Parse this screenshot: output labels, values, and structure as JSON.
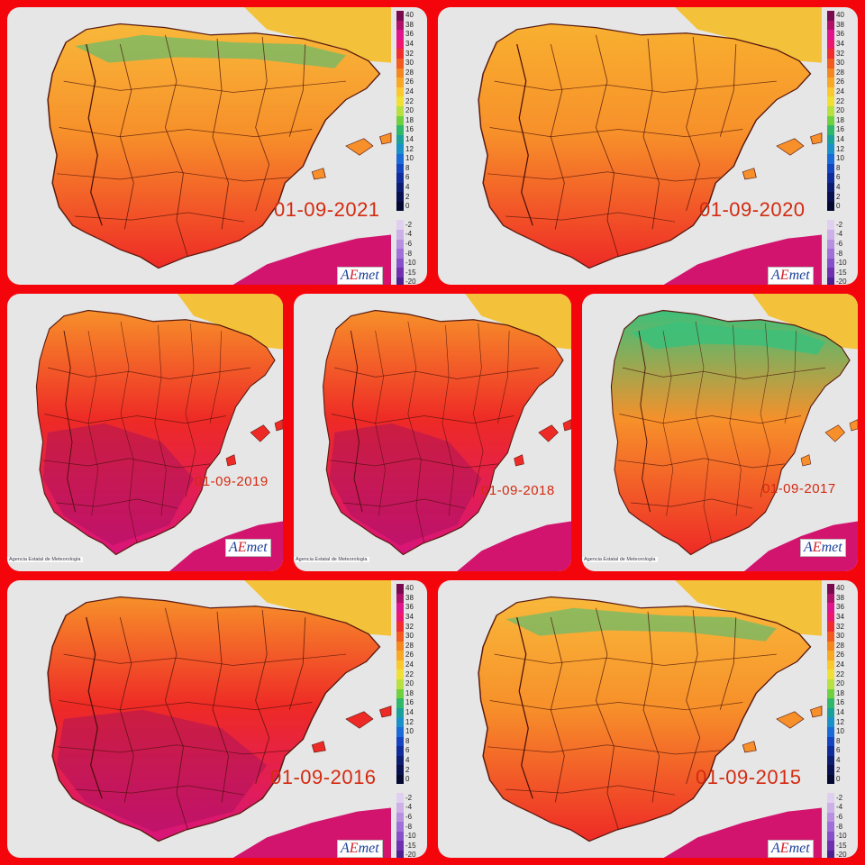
{
  "panels": [
    {
      "id": "p2021",
      "date": "01-09-2021",
      "heat": "mild"
    },
    {
      "id": "p2020",
      "date": "01-09-2020",
      "heat": "hot"
    },
    {
      "id": "p2019",
      "date": "01-09-2019",
      "heat": "extreme"
    },
    {
      "id": "p2018",
      "date": "01-09-2018",
      "heat": "extreme"
    },
    {
      "id": "p2017",
      "date": "01-09-2017",
      "heat": "cool"
    },
    {
      "id": "p2016",
      "date": "01-09-2016",
      "heat": "extreme"
    },
    {
      "id": "p2015",
      "date": "01-09-2015",
      "heat": "mild"
    }
  ],
  "legend": {
    "positive": [
      "40",
      "38",
      "36",
      "34",
      "32",
      "30",
      "28",
      "26",
      "24",
      "22",
      "20",
      "18",
      "16",
      "14",
      "12",
      "10",
      "8",
      "6",
      "4",
      "2",
      "0"
    ],
    "negative": [
      "-2",
      "-4",
      "-6",
      "-8",
      "-10",
      "-15",
      "-20"
    ],
    "positive_colors": [
      "#7a0a4f",
      "#b0106a",
      "#e0148c",
      "#f0156e",
      "#f22c2c",
      "#f25a1e",
      "#f5871f",
      "#f8a824",
      "#fbc82e",
      "#f0e034",
      "#b8e040",
      "#6fd040",
      "#30b86a",
      "#1aa09a",
      "#1a90c8",
      "#1a6ad8",
      "#1444c0",
      "#102c9a",
      "#0c1c70",
      "#081050",
      "#050830"
    ],
    "negative_colors": [
      "#e0d0f0",
      "#cdb0e8",
      "#b890e0",
      "#a070d8",
      "#8850c8",
      "#7030b0",
      "#502090"
    ]
  },
  "logo": {
    "text_a": "A",
    "text_e": "E",
    "text_rest": "met"
  },
  "agency_text": "Agencia Estatal de Meteorología",
  "palette": {
    "frame": "#f4050c",
    "sea": "#e6e6e6",
    "africa": "#d2146e",
    "france": "#f4c23a",
    "cool": "#3cc07a",
    "mild": "#f7902a",
    "hot": "#ee2a26",
    "extreme": "#d8147a",
    "extreme_core": "#a21060"
  }
}
